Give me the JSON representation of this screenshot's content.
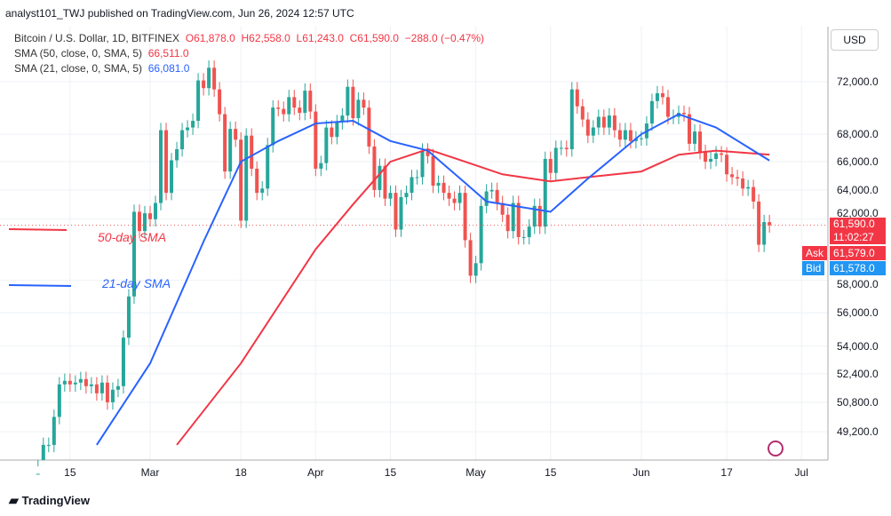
{
  "header": {
    "publisher": "analyst101_TWJ published on TradingView.com, Jun 26, 2024 12:57 UTC"
  },
  "legend": {
    "symbol": "Bitcoin / U.S. Dollar, 1D, BITFINEX",
    "o": "61,878.0",
    "h": "62,558.0",
    "l": "61,243.0",
    "c": "61,590.0",
    "chg": "−288.0 (−0.47%)",
    "sma50_label": "SMA (50, close, 0, SMA, 5)",
    "sma50_value": "66,511.0",
    "sma21_label": "SMA (21, close, 0, SMA, 5)",
    "sma21_value": "66,081.0"
  },
  "currency": "USD",
  "tags": {
    "price": "61,590.0",
    "countdown": "11:02:27",
    "ask_label": "Ask",
    "ask": "61,579.0",
    "bid_label": "Bid",
    "bid": "61,578.0"
  },
  "annotations": {
    "sma50": "50-day SMA",
    "sma21": "21-day SMA"
  },
  "footer": {
    "brand": "TradingView"
  },
  "colors": {
    "up": "#26a69a",
    "down": "#ef5350",
    "sma50": "#f23645",
    "sma21": "#2962ff"
  },
  "chart_data": {
    "type": "candlestick",
    "start_date": "2024-02-09",
    "closes": [
      47000,
      48500,
      48500,
      50000,
      51800,
      52000,
      51800,
      51900,
      52100,
      51700,
      51800,
      51300,
      51900,
      50800,
      51500,
      51700,
      54500,
      57000,
      62500,
      61200,
      62400,
      62000,
      63100,
      68300,
      63800,
      66100,
      66900,
      68300,
      68500,
      69000,
      72100,
      71500,
      73100,
      71400,
      69500,
      65300,
      68400,
      67600,
      61900,
      67900,
      65500,
      63800,
      64100,
      67200,
      70000,
      69900,
      69500,
      70800,
      70000,
      69600,
      71300,
      69700,
      65500,
      65900,
      68500,
      67800,
      68900,
      69400,
      71600,
      69200,
      70600,
      70000,
      67100,
      64000,
      65700,
      63400,
      63800,
      61300,
      63500,
      63800,
      64900,
      64900,
      66800,
      66400,
      64300,
      64500,
      63800,
      63400,
      63100,
      63800,
      60600,
      58300,
      59100,
      62900,
      63900,
      64000,
      63100,
      62300,
      61200,
      63100,
      60800,
      60800,
      61500,
      62900,
      61500,
      66200,
      65200,
      67000,
      67000,
      66900,
      71400,
      70100,
      69100,
      67900,
      68500,
      69300,
      68500,
      69400,
      68300,
      67600,
      68300,
      67500,
      67700,
      67700,
      68800,
      70500,
      71100,
      70800,
      69300,
      69300,
      69600,
      69500,
      67300,
      68200,
      66700,
      66000,
      66200,
      66600,
      66500,
      65100,
      64900,
      64800,
      64100,
      64200,
      63200,
      60300,
      61800,
      61590
    ],
    "sma50": [
      [
        26,
        48500
      ],
      [
        38,
        53000
      ],
      [
        52,
        60000
      ],
      [
        59,
        63000
      ],
      [
        66,
        66000
      ],
      [
        73,
        66900
      ],
      [
        80,
        66000
      ],
      [
        87,
        65100
      ],
      [
        96,
        64600
      ],
      [
        103,
        64900
      ],
      [
        113,
        65300
      ],
      [
        120,
        66500
      ],
      [
        127,
        66800
      ],
      [
        137,
        66511
      ]
    ],
    "sma21": [
      [
        11,
        48500
      ],
      [
        21,
        53000
      ],
      [
        31,
        60500
      ],
      [
        38,
        66000
      ],
      [
        45,
        67500
      ],
      [
        52,
        68800
      ],
      [
        59,
        69000
      ],
      [
        66,
        67500
      ],
      [
        73,
        66800
      ],
      [
        80,
        64500
      ],
      [
        84,
        63200
      ],
      [
        96,
        62500
      ],
      [
        103,
        64800
      ],
      [
        113,
        68000
      ],
      [
        120,
        69500
      ],
      [
        127,
        68500
      ],
      [
        137,
        66081
      ]
    ],
    "y_ticks": [
      "72,000.0",
      "68,000.0",
      "66,000.0",
      "64,000.0",
      "62,000.0",
      "58,000.0",
      "56,000.0",
      "54,000.0",
      "52,400.0",
      "50,800.0",
      "49,200.0"
    ],
    "y_tick_values": [
      72000,
      68000,
      66000,
      64000,
      62000,
      58000,
      56000,
      54000,
      52400,
      50800,
      49200
    ],
    "x_ticks": [
      "15",
      "Mar",
      "18",
      "Apr",
      "15",
      "May",
      "15",
      "Jun",
      "17",
      "Jul"
    ],
    "x_tick_days": [
      6,
      21,
      38,
      52,
      66,
      82,
      96,
      113,
      129,
      143
    ],
    "scale": "log"
  }
}
